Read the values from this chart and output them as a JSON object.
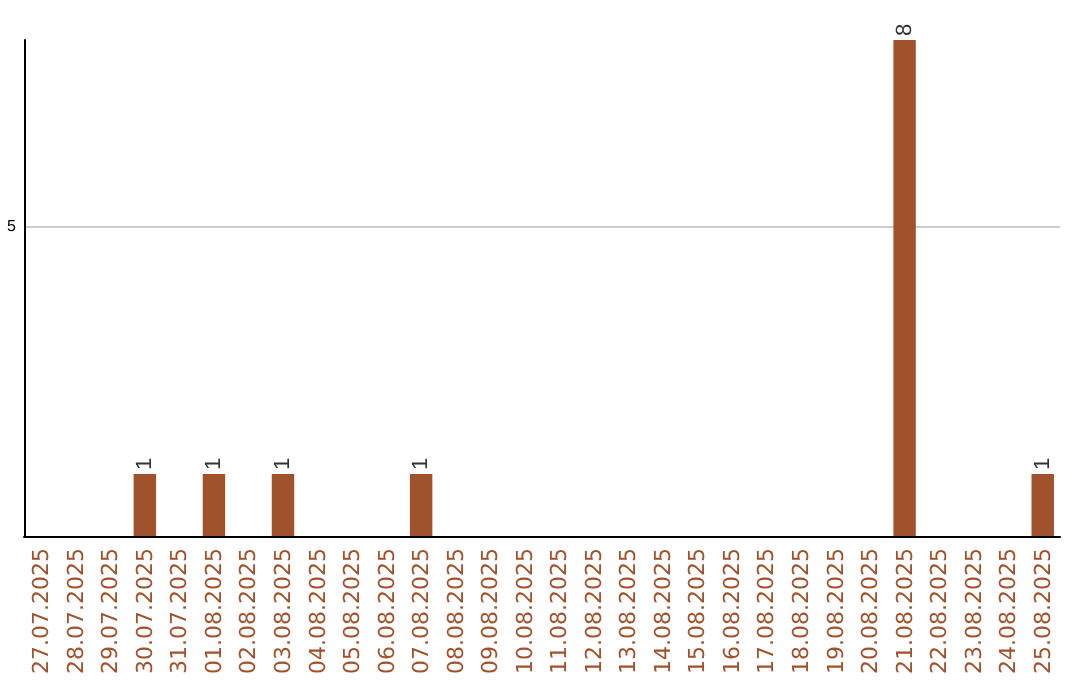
{
  "chart_data": {
    "type": "bar",
    "categories": [
      "27.07.2025",
      "28.07.2025",
      "29.07.2025",
      "30.07.2025",
      "31.07.2025",
      "01.08.2025",
      "02.08.2025",
      "03.08.2025",
      "04.08.2025",
      "05.08.2025",
      "06.08.2025",
      "07.08.2025",
      "08.08.2025",
      "09.08.2025",
      "10.08.2025",
      "11.08.2025",
      "12.08.2025",
      "13.08.2025",
      "14.08.2025",
      "15.08.2025",
      "16.08.2025",
      "17.08.2025",
      "18.08.2025",
      "19.08.2025",
      "20.08.2025",
      "21.08.2025",
      "22.08.2025",
      "23.08.2025",
      "24.08.2025",
      "25.08.2025"
    ],
    "values": [
      0,
      0,
      0,
      1,
      0,
      1,
      0,
      1,
      0,
      0,
      0,
      1,
      0,
      0,
      0,
      0,
      0,
      0,
      0,
      0,
      0,
      0,
      0,
      0,
      0,
      8,
      0,
      0,
      0,
      1
    ],
    "value_labels": [
      null,
      null,
      null,
      "1",
      null,
      "1",
      null,
      "1",
      null,
      null,
      null,
      "1",
      null,
      null,
      null,
      null,
      null,
      null,
      null,
      null,
      null,
      null,
      null,
      null,
      null,
      "8",
      null,
      null,
      null,
      "1"
    ],
    "color": "#a0522d",
    "ylim": [
      0,
      8
    ],
    "yticks": [
      5
    ],
    "grid": "y"
  }
}
